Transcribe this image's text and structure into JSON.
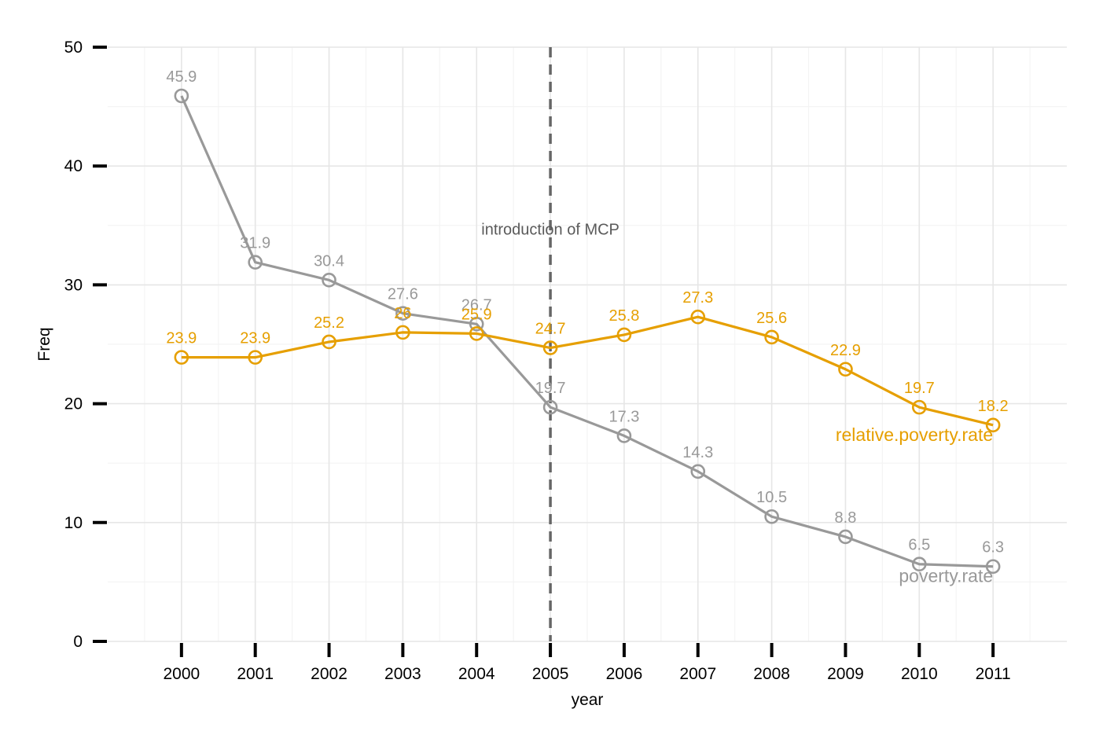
{
  "chart_data": {
    "type": "line",
    "xlabel": "year",
    "ylabel": "Freq",
    "x": [
      2000,
      2001,
      2002,
      2003,
      2004,
      2005,
      2006,
      2007,
      2008,
      2009,
      2010,
      2011
    ],
    "xlim": [
      1999,
      2012
    ],
    "ylim": [
      0,
      50
    ],
    "y_ticks": [
      0,
      10,
      20,
      30,
      40,
      50
    ],
    "grid": true,
    "legend": "none",
    "series": [
      {
        "name": "poverty.rate",
        "color": "#999999",
        "values": [
          45.9,
          31.9,
          30.4,
          27.6,
          26.7,
          19.7,
          17.3,
          14.3,
          10.5,
          8.8,
          6.5,
          6.3
        ],
        "labels": [
          "45.9",
          "31.9",
          "30.4",
          "27.6",
          "26.7",
          "19.7",
          "17.3",
          "14.3",
          "10.5",
          "8.8",
          "6.5",
          "6.3"
        ]
      },
      {
        "name": "relative.poverty.rate",
        "color": "#E69F00",
        "values": [
          23.9,
          23.9,
          25.2,
          26.0,
          25.9,
          24.7,
          25.8,
          27.3,
          25.6,
          22.9,
          19.7,
          18.2
        ],
        "labels": [
          "23.9",
          "23.9",
          "25.2",
          "26",
          "25.9",
          "24.7",
          "25.8",
          "27.3",
          "25.6",
          "22.9",
          "19.7",
          "18.2"
        ]
      }
    ],
    "annotations": [
      {
        "type": "vline",
        "x": 2005,
        "style": "dashed",
        "color": "#666666"
      },
      {
        "type": "text",
        "x": 2005,
        "y": 34.7,
        "text": "introduction of MCP"
      }
    ]
  }
}
